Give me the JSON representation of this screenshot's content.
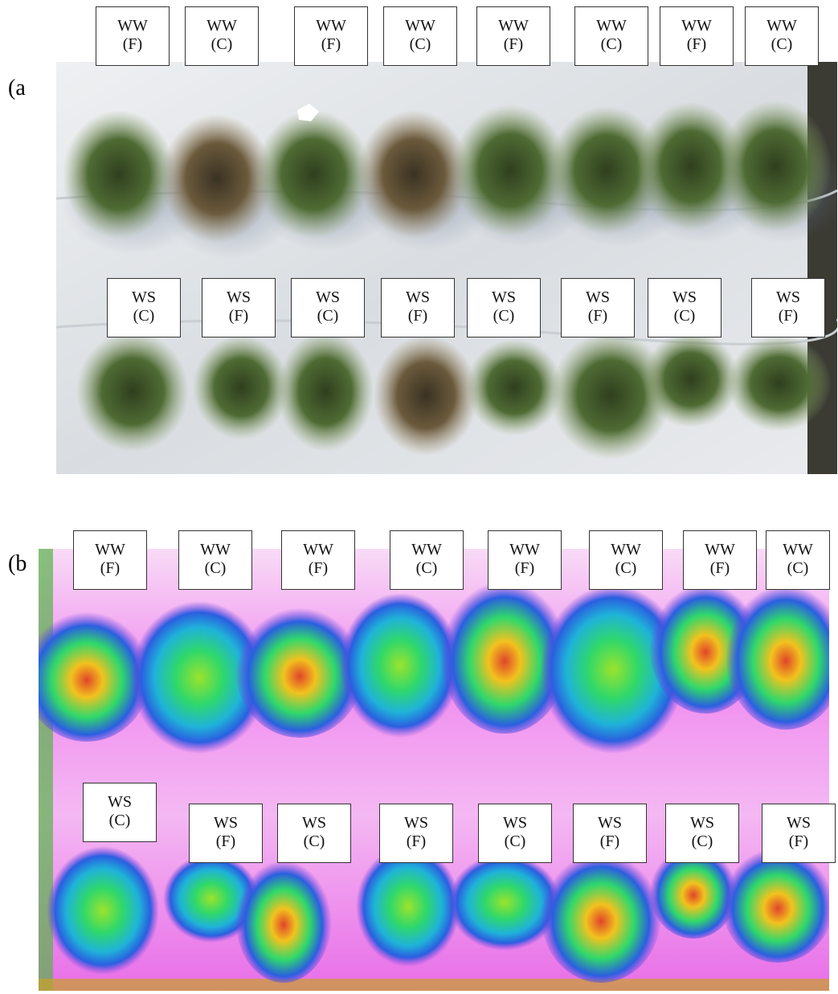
{
  "panel_a": {
    "label": "(a",
    "top_tags": [
      {
        "line1": "WW",
        "line2": "(F)"
      },
      {
        "line1": "WW",
        "line2": "(C)"
      },
      {
        "line1": "WW",
        "line2": "(F)"
      },
      {
        "line1": "WW",
        "line2": "(C)"
      },
      {
        "line1": "WW",
        "line2": "(F)"
      },
      {
        "line1": "WW",
        "line2": "(C)"
      },
      {
        "line1": "WW",
        "line2": "(F)"
      },
      {
        "line1": "WW",
        "line2": "(C)"
      }
    ],
    "bottom_tags": [
      {
        "line1": "WS",
        "line2": "(C)"
      },
      {
        "line1": "WS",
        "line2": "(F)"
      },
      {
        "line1": "WS",
        "line2": "(C)"
      },
      {
        "line1": "WS",
        "line2": "(F)"
      },
      {
        "line1": "WS",
        "line2": "(C)"
      },
      {
        "line1": "WS",
        "line2": "(F)"
      },
      {
        "line1": "WS",
        "line2": "(C)"
      },
      {
        "line1": "WS",
        "line2": "(F)"
      }
    ]
  },
  "panel_b": {
    "label": "(b",
    "top_tags": [
      {
        "line1": "WW",
        "line2": "(F)"
      },
      {
        "line1": "WW",
        "line2": "(C)"
      },
      {
        "line1": "WW",
        "line2": "(F)"
      },
      {
        "line1": "WW",
        "line2": "(C)"
      },
      {
        "line1": "WW",
        "line2": "(F)"
      },
      {
        "line1": "WW",
        "line2": "(C)"
      },
      {
        "line1": "WW",
        "line2": "(F)"
      },
      {
        "line1": "WW",
        "line2": "(C)"
      }
    ],
    "bottom_tags": [
      {
        "line1": "WS",
        "line2": "(C)"
      },
      {
        "line1": "WS",
        "line2": "(F)"
      },
      {
        "line1": "WS",
        "line2": "(C)"
      },
      {
        "line1": "WS",
        "line2": "(F)"
      },
      {
        "line1": "WS",
        "line2": "(C)"
      },
      {
        "line1": "WS",
        "line2": "(F)"
      },
      {
        "line1": "WS",
        "line2": "(C)"
      },
      {
        "line1": "WS",
        "line2": "(F)"
      }
    ]
  },
  "colors": {
    "tarp": "#dfe3e6",
    "plant_green": "#4f6b34",
    "plant_dry": "#6b5a3c",
    "false_color_background": "#f08cf0",
    "false_color_high": "#f2c21e",
    "false_color_mid": "#2fd86b",
    "false_color_low": "#2a5fe0"
  }
}
